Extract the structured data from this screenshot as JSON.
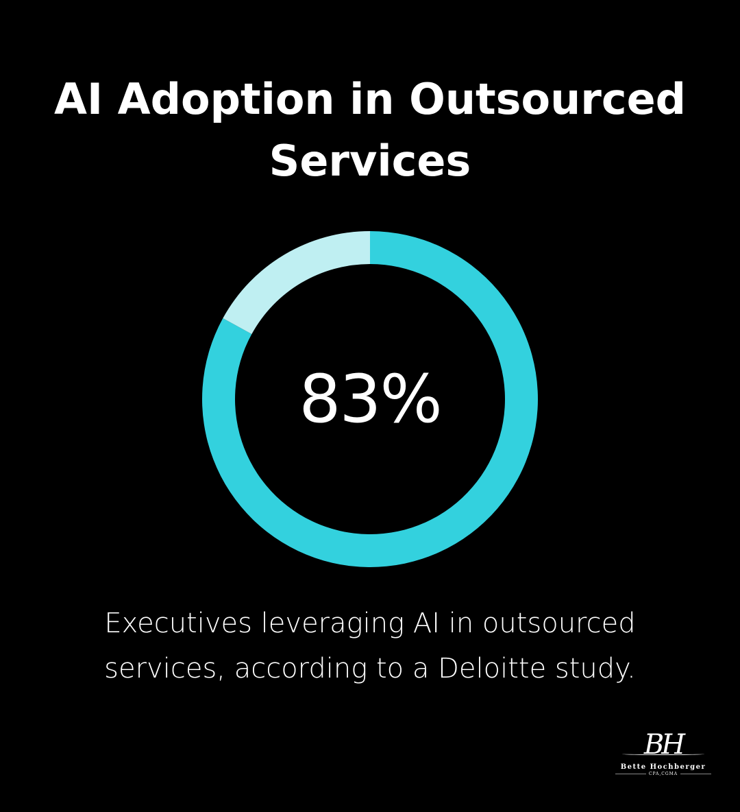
{
  "title": "AI Adoption in Outsourced Services",
  "caption": "Executives leveraging AI in outsourced services, according to a Deloitte study.",
  "logo": {
    "monogram": "BH",
    "name": "Bette Hochberger",
    "credentials": "CPA,CGMA"
  },
  "colors": {
    "background": "#000000",
    "filled": "#33D1DE",
    "remainder": "#BFEFF2",
    "text": "#FFFFFF"
  },
  "chart_data": {
    "type": "pie",
    "style": "donut",
    "title": "AI Adoption in Outsourced Services",
    "center_label": "83%",
    "slices": [
      {
        "label": "",
        "value": 83,
        "color": "#33D1DE"
      },
      {
        "label": "",
        "value": 17,
        "color": "#BFEFF2"
      }
    ]
  }
}
